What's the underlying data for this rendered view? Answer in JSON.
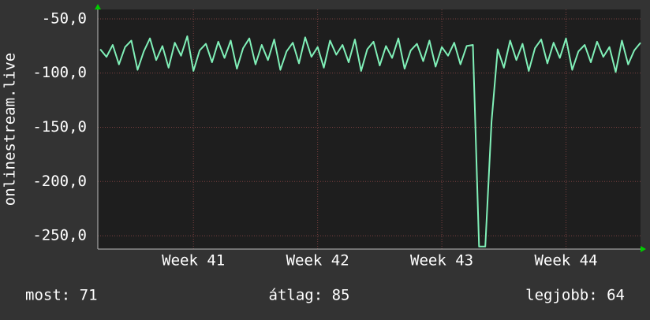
{
  "chart_data": {
    "type": "line",
    "y_label": "onlinestream.live",
    "x": [
      40.25,
      40.3,
      40.35,
      40.4,
      40.45,
      40.5,
      40.55,
      40.6,
      40.65,
      40.7,
      40.75,
      40.8,
      40.85,
      40.9,
      40.95,
      41.0,
      41.05,
      41.1,
      41.15,
      41.2,
      41.25,
      41.3,
      41.35,
      41.4,
      41.45,
      41.5,
      41.55,
      41.6,
      41.65,
      41.7,
      41.75,
      41.8,
      41.85,
      41.9,
      41.95,
      42.0,
      42.05,
      42.1,
      42.15,
      42.2,
      42.25,
      42.3,
      42.35,
      42.4,
      42.45,
      42.5,
      42.55,
      42.6,
      42.65,
      42.7,
      42.75,
      42.8,
      42.85,
      42.9,
      42.95,
      43.0,
      43.05,
      43.1,
      43.15,
      43.2,
      43.25,
      43.3,
      43.35,
      43.4,
      43.45,
      43.5,
      43.55,
      43.6,
      43.65,
      43.7,
      43.75,
      43.8,
      43.85,
      43.9,
      43.95,
      44.0,
      44.05,
      44.1,
      44.15,
      44.2,
      44.25,
      44.3,
      44.35,
      44.4,
      44.45,
      44.5,
      44.55,
      44.6
    ],
    "series": [
      {
        "color": "#80f0b8",
        "values": [
          -78,
          -85,
          -74,
          -92,
          -76,
          -70,
          -97,
          -80,
          -68,
          -88,
          -75,
          -95,
          -72,
          -84,
          -66,
          -98,
          -79,
          -73,
          -90,
          -71,
          -86,
          -70,
          -96,
          -77,
          -68,
          -92,
          -74,
          -88,
          -69,
          -97,
          -80,
          -72,
          -91,
          -67,
          -85,
          -76,
          -95,
          -70,
          -83,
          -74,
          -90,
          -69,
          -98,
          -78,
          -71,
          -93,
          -75,
          -86,
          -68,
          -96,
          -79,
          -73,
          -89,
          -70,
          -94,
          -76,
          -84,
          -72,
          -92,
          -75,
          -74,
          -260,
          -260,
          -145,
          -78,
          -95,
          -70,
          -88,
          -73,
          -98,
          -77,
          -69,
          -91,
          -72,
          -86,
          -68,
          -97,
          -80,
          -74,
          -90,
          -71,
          -85,
          -76,
          -99,
          -70,
          -92,
          -79,
          -72
        ]
      }
    ],
    "xlim": [
      40.23,
      44.6
    ],
    "xticks": [
      {
        "value": 41,
        "label": "Week 41"
      },
      {
        "value": 42,
        "label": "Week 42"
      },
      {
        "value": 43,
        "label": "Week 43"
      },
      {
        "value": 44,
        "label": "Week 44"
      }
    ],
    "ylim": [
      -262.3,
      -41.3
    ],
    "yticks": [
      {
        "value": -50,
        "label": "-50,0"
      },
      {
        "value": -100,
        "label": "-100,0"
      },
      {
        "value": -150,
        "label": "-150,0"
      },
      {
        "value": -200,
        "label": "-200,0"
      },
      {
        "value": -250,
        "label": "-250,0"
      }
    ],
    "grid": true,
    "footer": [
      "most: 71",
      "átlag: 85",
      "legjobb: 64"
    ]
  }
}
